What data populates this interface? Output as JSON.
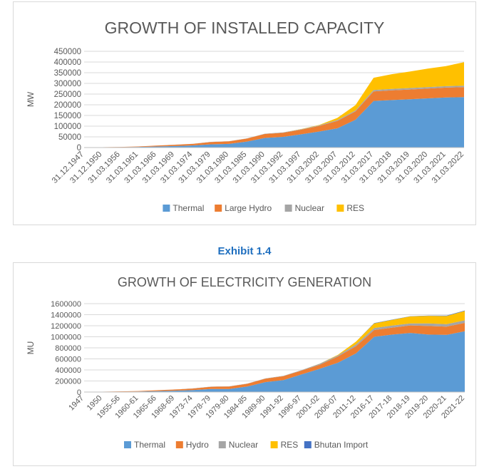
{
  "exhibit_label": "Exhibit 1.4",
  "chart_data": [
    {
      "type": "area",
      "stacked": true,
      "title": "GROWTH OF INSTALLED CAPACITY",
      "ylabel": "MW",
      "xlabel": "",
      "ylim": [
        0,
        450000
      ],
      "yticks": [
        0,
        50000,
        100000,
        150000,
        200000,
        250000,
        300000,
        350000,
        400000,
        450000
      ],
      "grid": true,
      "legend_position": "bottom",
      "categories": [
        "31.12.1947",
        "31.12.1950",
        "31.03.1956",
        "31.03.1961",
        "31.03.1966",
        "31.03.1969",
        "31.03.1974",
        "31.03.1979",
        "31.03.1980",
        "31.03.1985",
        "31.03.1990",
        "31.03.1992",
        "31.03.1997",
        "31.03.2002",
        "31.03.2007",
        "31.03.2012",
        "31.03.2017",
        "31.03.2018",
        "31.03.2019",
        "31.03.2020",
        "31.03.2021",
        "31.03.2022"
      ],
      "series": [
        {
          "name": "Thermal",
          "color": "#5b9bd5",
          "values": [
            800,
            1200,
            2000,
            3000,
            5000,
            7000,
            10000,
            15000,
            17000,
            28000,
            45000,
            50000,
            62000,
            75000,
            90000,
            130000,
            218000,
            222000,
            226000,
            230000,
            234000,
            236000
          ]
        },
        {
          "name": "Large Hydro",
          "color": "#ed7d31",
          "values": [
            500,
            600,
            1000,
            1900,
            4100,
            5900,
            6900,
            11000,
            12000,
            14000,
            18500,
            19000,
            21600,
            26300,
            34600,
            38900,
            44500,
            45300,
            45400,
            45700,
            46200,
            46700
          ]
        },
        {
          "name": "Nuclear",
          "color": "#a5a5a5",
          "values": [
            0,
            0,
            0,
            0,
            0,
            400,
            600,
            600,
            600,
            1100,
            1600,
            1800,
            2200,
            2700,
            3900,
            4800,
            6800,
            6800,
            6800,
            6800,
            6800,
            6800
          ]
        },
        {
          "name": "RES",
          "color": "#ffc000",
          "values": [
            0,
            0,
            0,
            0,
            0,
            0,
            0,
            0,
            0,
            0,
            0,
            0,
            900,
            1600,
            10000,
            24500,
            57000,
            69000,
            77000,
            87000,
            94000,
            110000
          ]
        }
      ]
    },
    {
      "type": "area",
      "stacked": true,
      "title": "GROWTH OF ELECTRICITY GENERATION",
      "ylabel": "MU",
      "xlabel": "",
      "ylim": [
        0,
        1600000
      ],
      "yticks": [
        0,
        200000,
        400000,
        600000,
        800000,
        1000000,
        1200000,
        1400000,
        1600000
      ],
      "grid": true,
      "legend_position": "bottom",
      "categories": [
        "1947",
        "1950",
        "1955-56",
        "1960-61",
        "1965-66",
        "1968-69",
        "1973-74",
        "1978-79",
        "1979-80",
        "1984-85",
        "1989-90",
        "1991-92",
        "1996-97",
        "2001-02",
        "2006-07",
        "2011-12",
        "2016-17",
        "2017-18",
        "2018-19",
        "2019-20",
        "2020-21",
        "2021-22"
      ],
      "series": [
        {
          "name": "Thermal",
          "color": "#5b9bd5",
          "values": [
            2000,
            3000,
            6000,
            10000,
            17000,
            25000,
            35000,
            55000,
            55000,
            100000,
            180000,
            215000,
            320000,
            420000,
            530000,
            700000,
            1000000,
            1040000,
            1070000,
            1040000,
            1035000,
            1100000
          ]
        },
        {
          "name": "Hydro",
          "color": "#ed7d31",
          "values": [
            2000,
            3000,
            6000,
            8000,
            15000,
            20000,
            28000,
            40000,
            45000,
            50000,
            62000,
            72000,
            68000,
            74000,
            114000,
            130000,
            122000,
            126000,
            135000,
            155000,
            150000,
            151000
          ]
        },
        {
          "name": "Nuclear",
          "color": "#a5a5a5",
          "values": [
            0,
            0,
            0,
            0,
            0,
            2000,
            2500,
            3000,
            3000,
            4000,
            5000,
            5500,
            9000,
            19000,
            19000,
            33000,
            38000,
            38000,
            38000,
            46000,
            43000,
            47000
          ]
        },
        {
          "name": "RES",
          "color": "#ffc000",
          "values": [
            0,
            0,
            0,
            0,
            0,
            0,
            0,
            0,
            0,
            0,
            0,
            0,
            0,
            2000,
            9000,
            51000,
            82000,
            102000,
            126000,
            138000,
            147000,
            170000
          ]
        },
        {
          "name": "Bhutan Import",
          "color": "#4472c4",
          "values": [
            0,
            0,
            0,
            0,
            0,
            0,
            0,
            0,
            0,
            0,
            0,
            0,
            0,
            0,
            0,
            0,
            5600,
            5000,
            4400,
            5800,
            8800,
            7500
          ]
        }
      ]
    }
  ]
}
